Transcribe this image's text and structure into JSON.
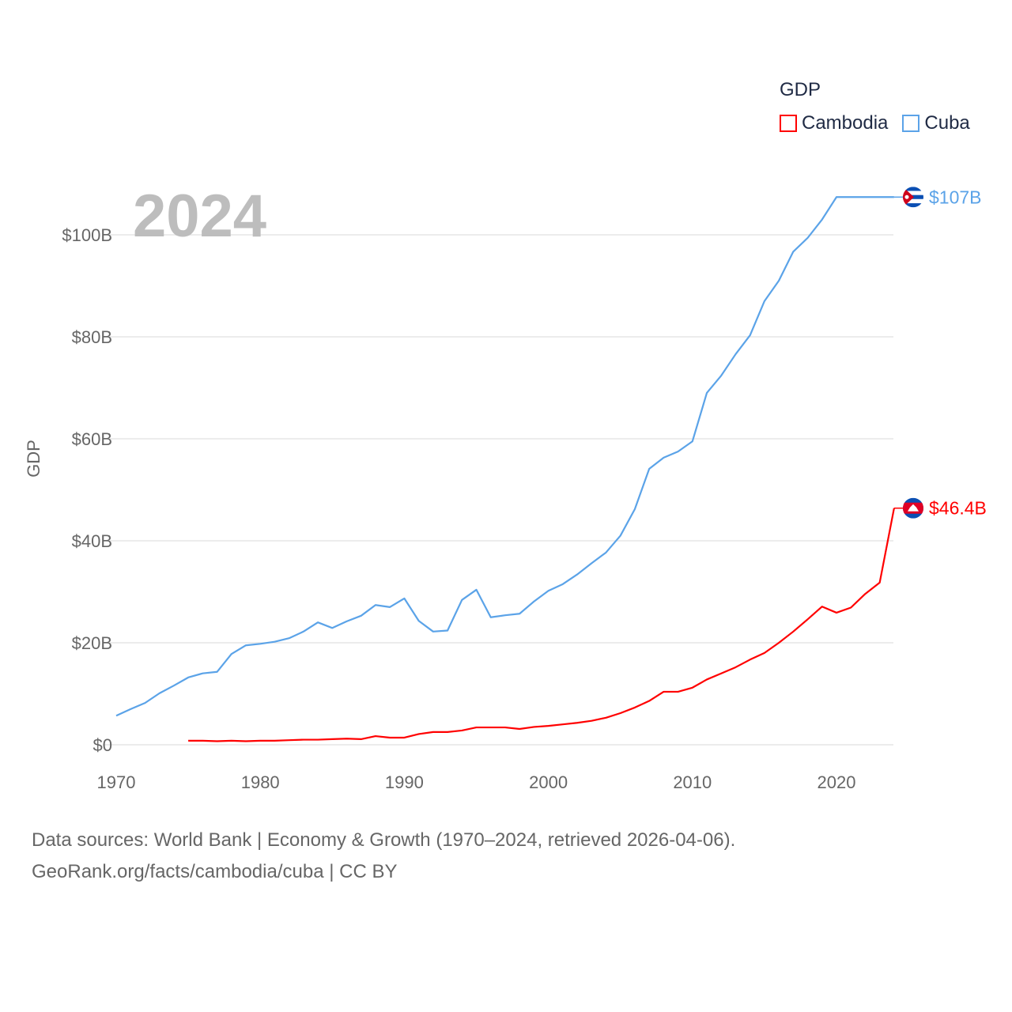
{
  "chart_data": {
    "type": "line",
    "title": "GDP",
    "year_label": "2024",
    "ylabel": "GDP",
    "xlabel": "",
    "xlim": [
      1970,
      2024
    ],
    "ylim": [
      0,
      110
    ],
    "x_ticks": [
      1970,
      1980,
      1990,
      2000,
      2010,
      2020
    ],
    "y_ticks": [
      0,
      20,
      40,
      60,
      80,
      100
    ],
    "y_tick_labels": [
      "$0",
      "$20B",
      "$40B",
      "$60B",
      "$80B",
      "$100B"
    ],
    "grid": true,
    "legend_position": "top-right",
    "series": [
      {
        "name": "Cambodia",
        "color": "#ff0000",
        "end_label": "$46.4B",
        "x": [
          1975,
          1976,
          1977,
          1978,
          1979,
          1980,
          1981,
          1982,
          1983,
          1984,
          1985,
          1986,
          1987,
          1988,
          1989,
          1990,
          1991,
          1992,
          1993,
          1994,
          1995,
          1996,
          1997,
          1998,
          1999,
          2000,
          2001,
          2002,
          2003,
          2004,
          2005,
          2006,
          2007,
          2008,
          2009,
          2010,
          2011,
          2012,
          2013,
          2014,
          2015,
          2016,
          2017,
          2018,
          2019,
          2020,
          2021,
          2022,
          2023,
          2024
        ],
        "values": [
          0.8,
          0.8,
          0.7,
          0.8,
          0.7,
          0.8,
          0.8,
          0.9,
          1.0,
          1.0,
          1.1,
          1.2,
          1.1,
          1.7,
          1.4,
          1.4,
          2.1,
          2.5,
          2.5,
          2.8,
          3.4,
          3.4,
          3.4,
          3.1,
          3.5,
          3.7,
          4.0,
          4.3,
          4.7,
          5.3,
          6.2,
          7.3,
          8.6,
          10.4,
          10.4,
          11.2,
          12.8,
          14.0,
          15.2,
          16.7,
          18.0,
          20.0,
          22.2,
          24.6,
          27.1,
          25.9,
          26.9,
          29.6,
          31.8,
          46.4
        ]
      },
      {
        "name": "Cuba",
        "color": "#5ba3e8",
        "end_label": "$107B",
        "x": [
          1970,
          1971,
          1972,
          1973,
          1974,
          1975,
          1976,
          1977,
          1978,
          1979,
          1980,
          1981,
          1982,
          1983,
          1984,
          1985,
          1986,
          1987,
          1988,
          1989,
          1990,
          1991,
          1992,
          1993,
          1994,
          1995,
          1996,
          1997,
          1998,
          1999,
          2000,
          2001,
          2002,
          2003,
          2004,
          2005,
          2006,
          2007,
          2008,
          2009,
          2010,
          2011,
          2012,
          2013,
          2014,
          2015,
          2016,
          2017,
          2018,
          2019,
          2020,
          2021,
          2022,
          2023,
          2024
        ],
        "values": [
          5.7,
          7.0,
          8.2,
          10.1,
          11.6,
          13.2,
          14.0,
          14.3,
          17.8,
          19.5,
          19.8,
          20.2,
          20.9,
          22.2,
          24.0,
          22.9,
          24.2,
          25.3,
          27.4,
          27.0,
          28.7,
          24.3,
          22.2,
          22.4,
          28.4,
          30.4,
          25.0,
          25.4,
          25.7,
          28.1,
          30.2,
          31.5,
          33.4,
          35.6,
          37.7,
          41.0,
          46.2,
          54.1,
          56.3,
          57.5,
          59.5,
          69.0,
          72.4,
          76.6,
          80.3,
          87.0,
          91.0,
          96.7,
          99.4,
          103.0,
          107.4,
          107.4,
          107.4,
          107.4,
          107.4
        ]
      }
    ]
  },
  "source": {
    "line1": "Data sources: World Bank | Economy & Growth (1970–2024, retrieved 2026-04-06).",
    "line2": "GeoRank.org/facts/cambodia/cuba | CC BY"
  }
}
